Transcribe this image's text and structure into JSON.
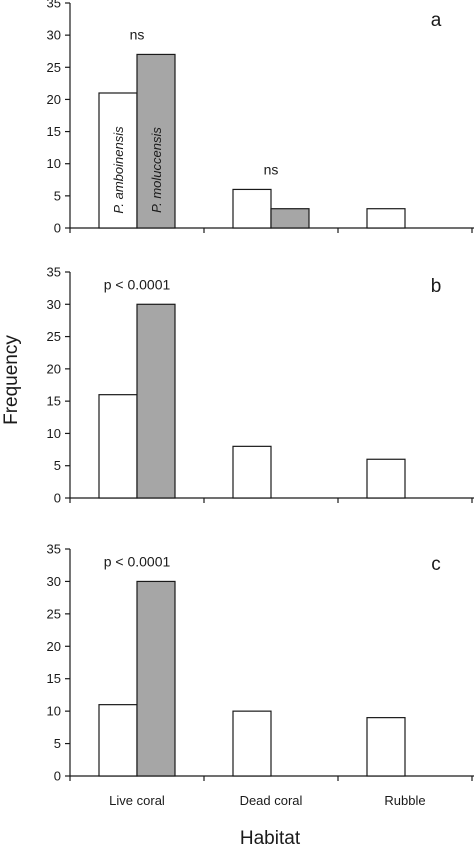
{
  "chart_data": [
    {
      "type": "bar",
      "panel": "a",
      "categories": [
        "Live coral",
        "Dead coral",
        "Rubble"
      ],
      "series": [
        {
          "name": "P. amboinensis",
          "values": [
            21,
            6,
            3
          ]
        },
        {
          "name": "P. moluccensis",
          "values": [
            27,
            3,
            0
          ]
        }
      ],
      "annotations": [
        {
          "text": "ns",
          "category": "Live coral"
        },
        {
          "text": "ns",
          "category": "Dead coral"
        }
      ],
      "ylim": [
        0,
        35
      ],
      "yticks": [
        0,
        5,
        10,
        15,
        20,
        25,
        30,
        35
      ]
    },
    {
      "type": "bar",
      "panel": "b",
      "categories": [
        "Live coral",
        "Dead coral",
        "Rubble"
      ],
      "series": [
        {
          "values": [
            16,
            8,
            6
          ]
        },
        {
          "values": [
            30,
            0,
            0
          ]
        }
      ],
      "annotations": [
        {
          "text": "p < 0.0001",
          "category": "Live coral"
        }
      ],
      "ylim": [
        0,
        35
      ],
      "yticks": [
        0,
        5,
        10,
        15,
        20,
        25,
        30,
        35
      ]
    },
    {
      "type": "bar",
      "panel": "c",
      "categories": [
        "Live coral",
        "Dead coral",
        "Rubble"
      ],
      "series": [
        {
          "values": [
            11,
            10,
            9
          ]
        },
        {
          "values": [
            30,
            0,
            0
          ]
        }
      ],
      "annotations": [
        {
          "text": "p < 0.0001",
          "category": "Live coral"
        }
      ],
      "ylim": [
        0,
        35
      ],
      "yticks": [
        0,
        5,
        10,
        15,
        20,
        25,
        30,
        35
      ]
    }
  ],
  "axes": {
    "xlabel": "Habitat",
    "ylabel": "Frequency"
  },
  "colors": {
    "series_1_fill": "#ffffff",
    "series_2_fill": "#a6a6a6",
    "stroke": "#1a1a1a"
  }
}
